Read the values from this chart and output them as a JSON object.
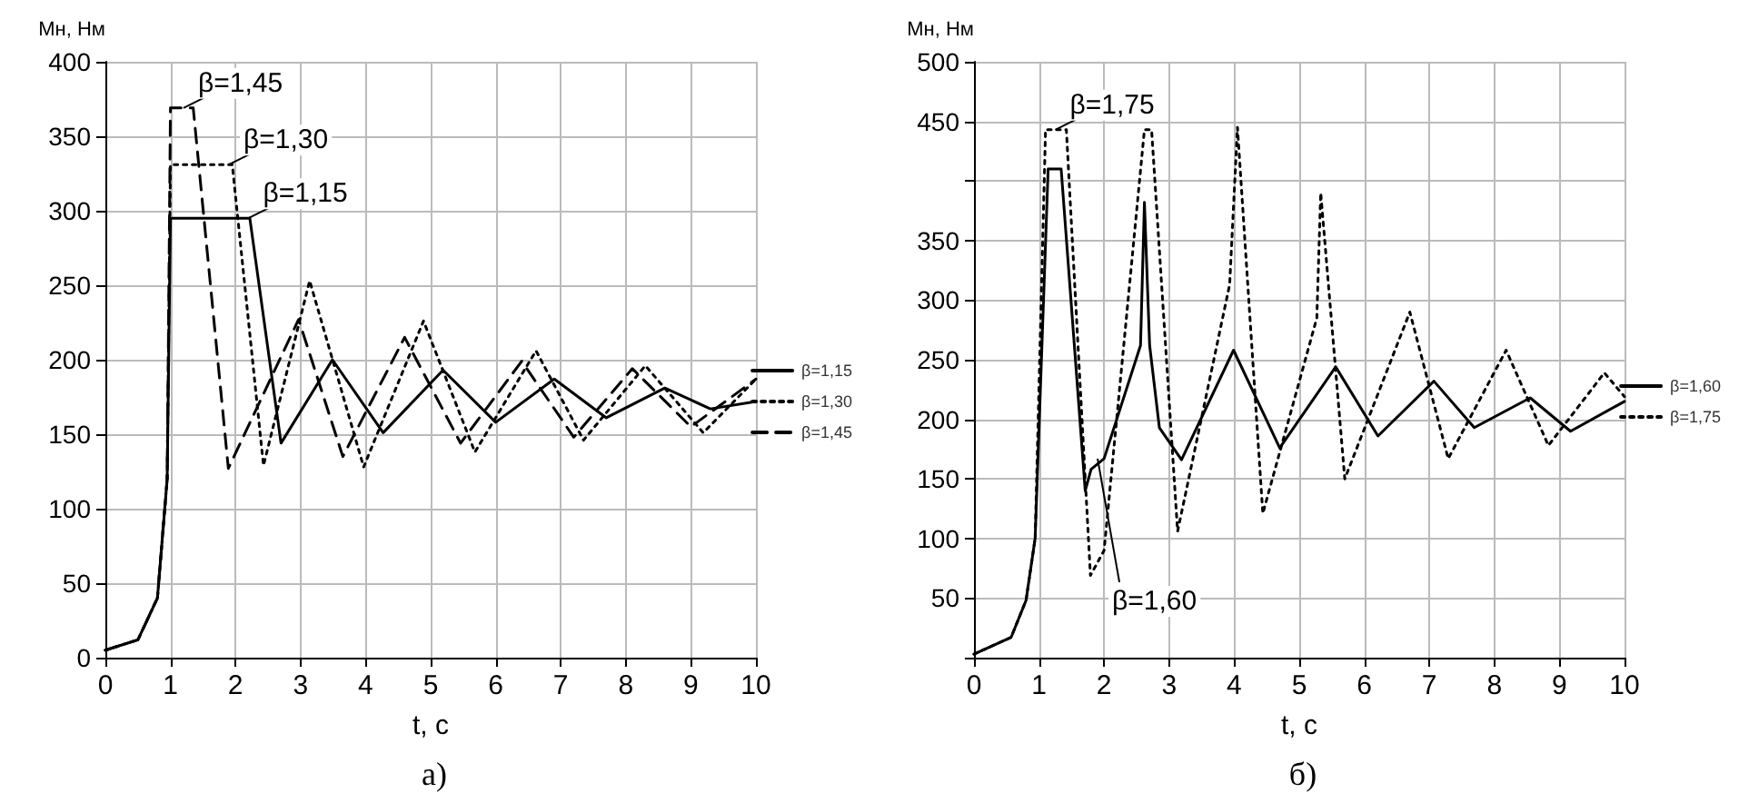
{
  "chart_data": [
    {
      "type": "line",
      "title": "а)",
      "ylabel": "Мн, Нм",
      "xlabel": "t, c",
      "xlim": [
        0,
        10
      ],
      "xticks": [
        0,
        1,
        2,
        3,
        4,
        5,
        6,
        7,
        8,
        9,
        10
      ],
      "ylim": [
        0,
        400
      ],
      "yticks": [
        0,
        50,
        100,
        150,
        200,
        250,
        300,
        350,
        400
      ],
      "grid": true,
      "legend": "right",
      "marker": "none",
      "annotations": [
        {
          "text": "β=1,45",
          "x": 1.2,
          "y": 369
        },
        {
          "text": "β=1,30",
          "x": 1.9,
          "y": 331
        },
        {
          "text": "β=1,15",
          "x": 2.2,
          "y": 295
        }
      ],
      "series": [
        {
          "name": "β=1,15",
          "color": "#000000",
          "line_style": "solid",
          "x": [
            0,
            0.5,
            0.8,
            0.95,
            1.0,
            2.22,
            2.7,
            3.49,
            4.27,
            5.19,
            6.0,
            6.9,
            7.7,
            8.6,
            9.3,
            10
          ],
          "values": [
            5,
            12,
            40,
            120,
            295,
            295,
            144,
            200,
            151,
            193,
            158,
            187,
            161,
            181,
            167,
            172
          ]
        },
        {
          "name": "β=1,30",
          "color": "#000000",
          "line_style": "dotted",
          "x": [
            0,
            0.5,
            0.8,
            0.95,
            1.0,
            1.95,
            2.43,
            3.14,
            3.97,
            4.89,
            5.68,
            6.62,
            7.35,
            8.3,
            9.19,
            10
          ],
          "values": [
            5,
            12,
            40,
            120,
            331,
            331,
            129,
            253,
            128,
            226,
            138,
            206,
            146,
            196,
            151,
            187
          ]
        },
        {
          "name": "β=1,45",
          "color": "#000000",
          "line_style": "dashed",
          "x": [
            0,
            0.5,
            0.8,
            0.95,
            1.0,
            1.35,
            1.89,
            2.97,
            3.65,
            4.6,
            5.46,
            6.4,
            7.2,
            8.1,
            9.0,
            10
          ],
          "values": [
            5,
            12,
            40,
            120,
            369,
            369,
            127,
            227,
            135,
            215,
            144,
            199,
            148,
            194,
            155,
            187
          ]
        }
      ]
    },
    {
      "type": "line",
      "title": "б)",
      "ylabel": "Мн, Нм",
      "xlabel": "t, c",
      "xlim": [
        0,
        10
      ],
      "xticks": [
        0,
        1,
        2,
        3,
        4,
        5,
        6,
        7,
        8,
        9,
        10
      ],
      "ylim": [
        0,
        500
      ],
      "yticks": [
        {
          "value": 0,
          "label": null
        },
        50,
        100,
        150,
        200,
        250,
        300,
        350,
        {
          "value": 400,
          "label": null
        },
        450,
        500
      ],
      "grid": true,
      "legend": "right",
      "marker": "none",
      "annotations": [
        {
          "text": "β=1,75",
          "x": 1.25,
          "y": 443
        },
        {
          "text": "β=1,60",
          "x": 1.9,
          "y": 167
        }
      ],
      "series": [
        {
          "name": "β=1,60",
          "color": "#000000",
          "line_style": "solid",
          "x": [
            0,
            0.57,
            0.8,
            0.94,
            1.14,
            1.34,
            1.71,
            1.8,
            2.0,
            2.56,
            2.62,
            2.7,
            2.85,
            3.19,
            3.99,
            4.7,
            5.56,
            6.21,
            7.07,
            7.69,
            8.55,
            9.17,
            10
          ],
          "values": [
            3,
            17,
            48,
            100,
            410,
            410,
            140,
            158,
            167,
            262,
            382,
            262,
            193,
            166,
            258,
            176,
            244,
            186,
            232,
            193,
            218,
            190,
            215
          ]
        },
        {
          "name": "β=1,75",
          "color": "#000000",
          "line_style": "dotted",
          "x": [
            0,
            0.57,
            0.8,
            0.94,
            1.1,
            1.42,
            1.79,
            2.0,
            2.62,
            2.73,
            3.13,
            3.93,
            4.05,
            4.44,
            5.27,
            5.33,
            5.7,
            6.7,
            7.29,
            8.18,
            8.83,
            9.69,
            10
          ],
          "values": [
            3,
            17,
            48,
            100,
            443,
            443,
            69,
            90,
            443,
            443,
            106,
            313,
            445,
            121,
            285,
            390,
            150,
            290,
            167,
            258,
            178,
            239,
            219
          ]
        }
      ]
    }
  ]
}
